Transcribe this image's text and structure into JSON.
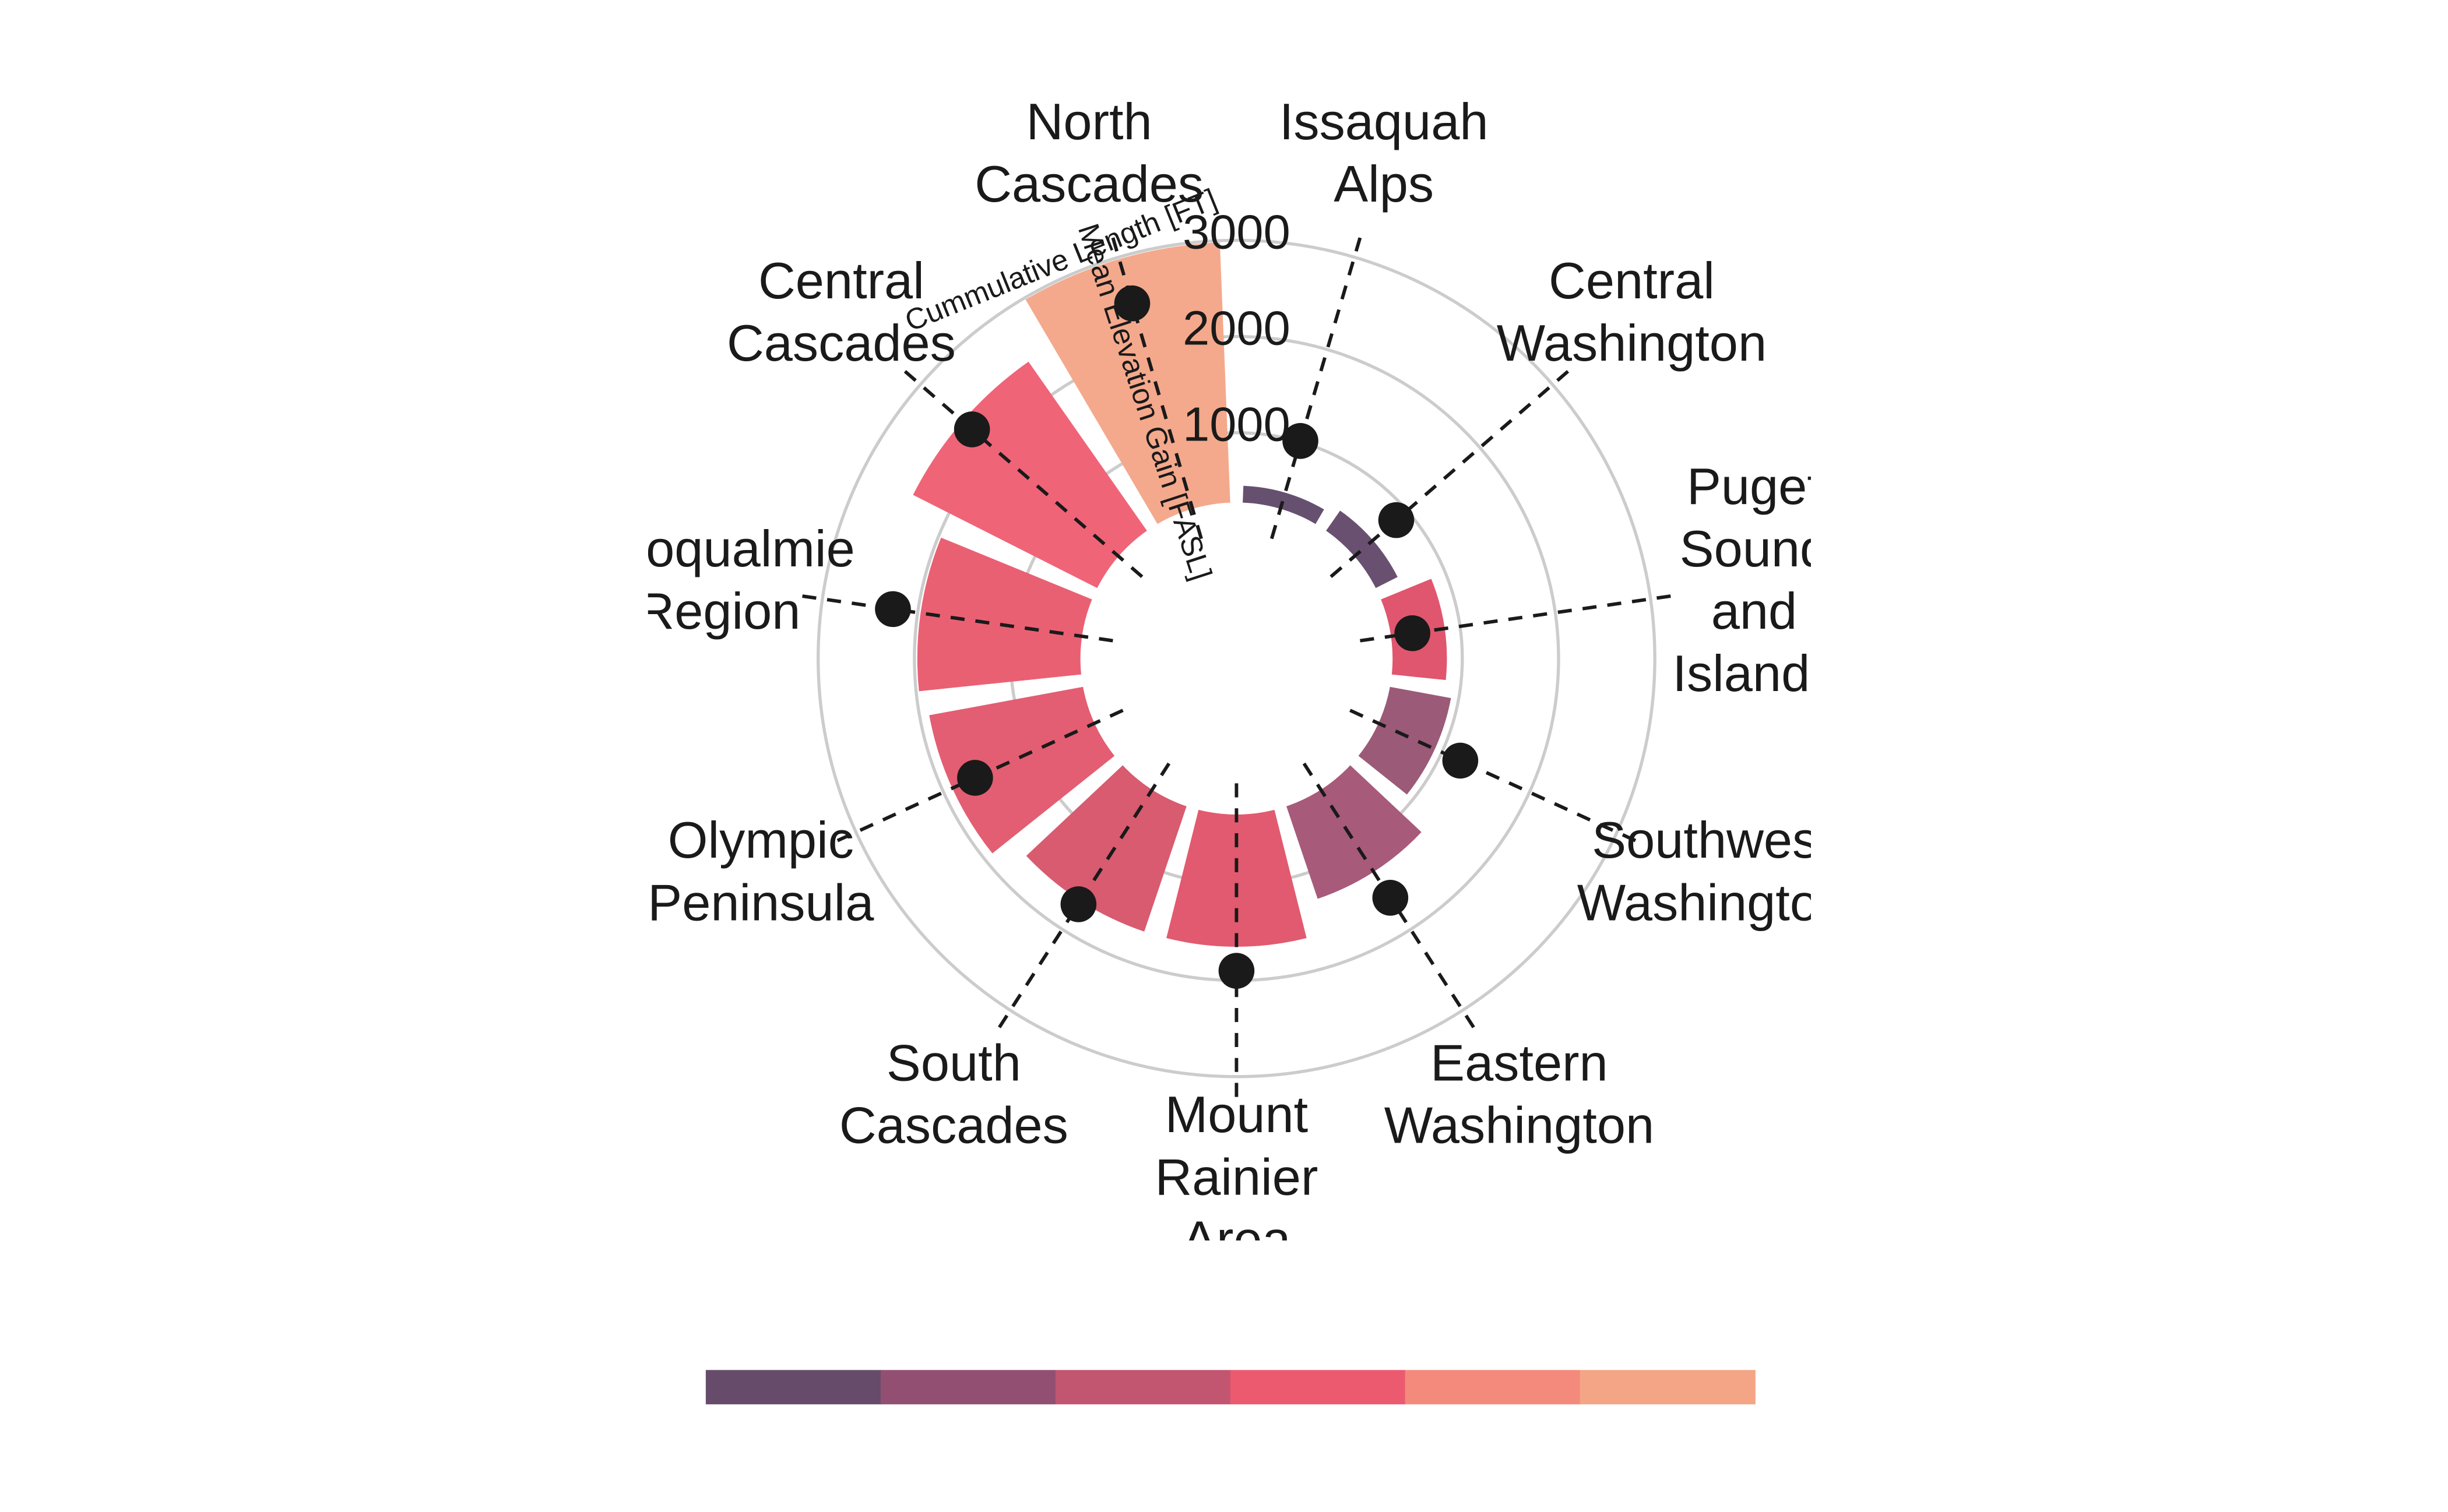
{
  "chart_data": {
    "type": "polar-bar",
    "categories": [
      "Issaquah Alps",
      "Central Washington",
      "Puget Sound and Islands",
      "Southwest Washington",
      "Eastern Washington",
      "Mount Rainier Area",
      "South Cascades",
      "Olympic Peninsula",
      "Snoqualmie Region",
      "Central Cascades",
      "North Cascades"
    ],
    "series": [
      {
        "name": "Cummulative Length [FT]",
        "values": [
          450,
          530,
          840,
          920,
          1290,
          1650,
          1650,
          1900,
          1970,
          2420,
          2980
        ],
        "colors": [
          "#66506f",
          "#6a5070",
          "#e0566f",
          "#9a5a78",
          "#a85a7a",
          "#e25a6f",
          "#d85b70",
          "#e35e72",
          "#ea6073",
          "#f06478",
          "#f4a98c"
        ]
      },
      {
        "name": "Mean Elevation Gain [FASL]",
        "color": "#1a1a1a",
        "values": [
          1010,
          850,
          500,
          1210,
          1610,
          1900,
          1690,
          1640,
          2260,
          2290,
          2500
        ]
      }
    ],
    "ylim": [
      0,
      3000
    ],
    "yticks": [
      1000,
      2000,
      3000
    ],
    "grid": true,
    "colorbar_colors": [
      "#664b6b",
      "#924f72",
      "#c25570",
      "#ec5a70",
      "#f38a7c",
      "#f4a586"
    ]
  }
}
